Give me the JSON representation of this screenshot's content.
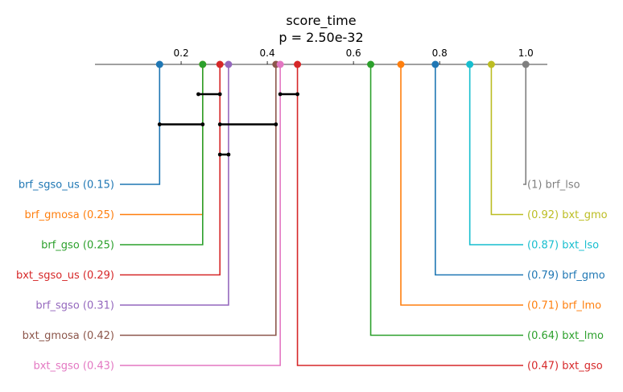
{
  "chart_data": {
    "type": "critical-difference",
    "title": "score_time",
    "subtitle": "p = 2.50e-32",
    "xlim": [
      0.0,
      1.05
    ],
    "ticks": [
      "0.2",
      "0.4",
      "0.6",
      "0.8",
      "1.0"
    ],
    "tick_values": [
      0.2,
      0.4,
      0.6,
      0.8,
      1.0
    ],
    "items": [
      {
        "name": "brf_sgso_us",
        "value": 0.15,
        "label": "brf_sgso_us (0.15)",
        "side": "left",
        "color": "#1f77b4"
      },
      {
        "name": "brf_gmosa",
        "value": 0.25,
        "label": "brf_gmosa (0.25)",
        "side": "left",
        "color": "#ff7f0e"
      },
      {
        "name": "brf_gso",
        "value": 0.25,
        "label": "brf_gso (0.25)",
        "side": "left",
        "color": "#2ca02c"
      },
      {
        "name": "bxt_sgso_us",
        "value": 0.29,
        "label": "bxt_sgso_us (0.29)",
        "side": "left",
        "color": "#d62728"
      },
      {
        "name": "brf_sgso",
        "value": 0.31,
        "label": "brf_sgso (0.31)",
        "side": "left",
        "color": "#9467bd"
      },
      {
        "name": "bxt_gmosa",
        "value": 0.42,
        "label": "bxt_gmosa (0.42)",
        "side": "left",
        "color": "#8c564b"
      },
      {
        "name": "bxt_sgso",
        "value": 0.43,
        "label": "bxt_sgso (0.43)",
        "side": "left",
        "color": "#e377c2"
      },
      {
        "name": "brf_lso",
        "value": 1.0,
        "label": "(1) brf_lso",
        "side": "right",
        "color": "#7f7f7f"
      },
      {
        "name": "bxt_gmo",
        "value": 0.92,
        "label": "(0.92) bxt_gmo",
        "side": "right",
        "color": "#bcbd22"
      },
      {
        "name": "bxt_lso",
        "value": 0.87,
        "label": "(0.87) bxt_lso",
        "side": "right",
        "color": "#17becf"
      },
      {
        "name": "brf_gmo",
        "value": 0.79,
        "label": "(0.79) brf_gmo",
        "side": "right",
        "color": "#1f77b4"
      },
      {
        "name": "brf_lmo",
        "value": 0.71,
        "label": "(0.71) brf_lmo",
        "side": "right",
        "color": "#ff7f0e"
      },
      {
        "name": "bxt_lmo",
        "value": 0.64,
        "label": "(0.64) bxt_lmo",
        "side": "right",
        "color": "#2ca02c"
      },
      {
        "name": "bxt_gso",
        "value": 0.47,
        "label": "(0.47) bxt_gso",
        "side": "right",
        "color": "#d62728"
      }
    ],
    "cliques": [
      {
        "from": 0.24,
        "to": 0.29
      },
      {
        "from": 0.43,
        "to": 0.47
      },
      {
        "from": 0.15,
        "to": 0.25
      },
      {
        "from": 0.29,
        "to": 0.42
      },
      {
        "from": 0.29,
        "to": 0.31
      }
    ]
  }
}
